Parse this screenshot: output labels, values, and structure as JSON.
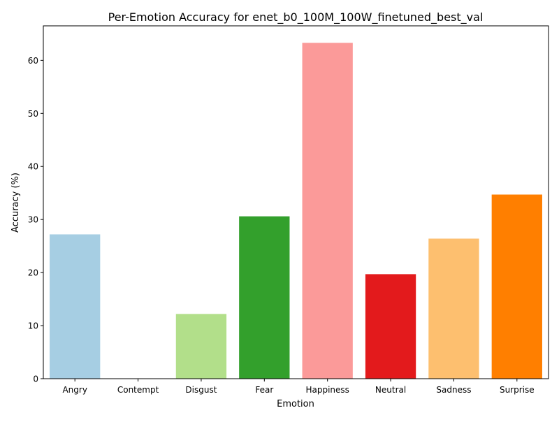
{
  "chart_data": {
    "type": "bar",
    "title": "Per-Emotion Accuracy for enet_b0_100M_100W_finetuned_best_val",
    "xlabel": "Emotion",
    "ylabel": "Accuracy (%)",
    "categories": [
      "Angry",
      "Contempt",
      "Disgust",
      "Fear",
      "Happiness",
      "Neutral",
      "Sadness",
      "Surprise"
    ],
    "values": [
      27.2,
      0.0,
      12.2,
      30.6,
      63.3,
      19.7,
      26.4,
      34.7
    ],
    "colors": [
      "#a6cee3",
      "#1f78b4",
      "#b2df8a",
      "#33a02c",
      "#fb9a99",
      "#e31a1c",
      "#fdbf6f",
      "#ff7f00"
    ],
    "ylim": [
      0,
      66.5
    ],
    "yticks": [
      0,
      10,
      20,
      30,
      40,
      50,
      60
    ],
    "grid": false,
    "legend": "none"
  }
}
